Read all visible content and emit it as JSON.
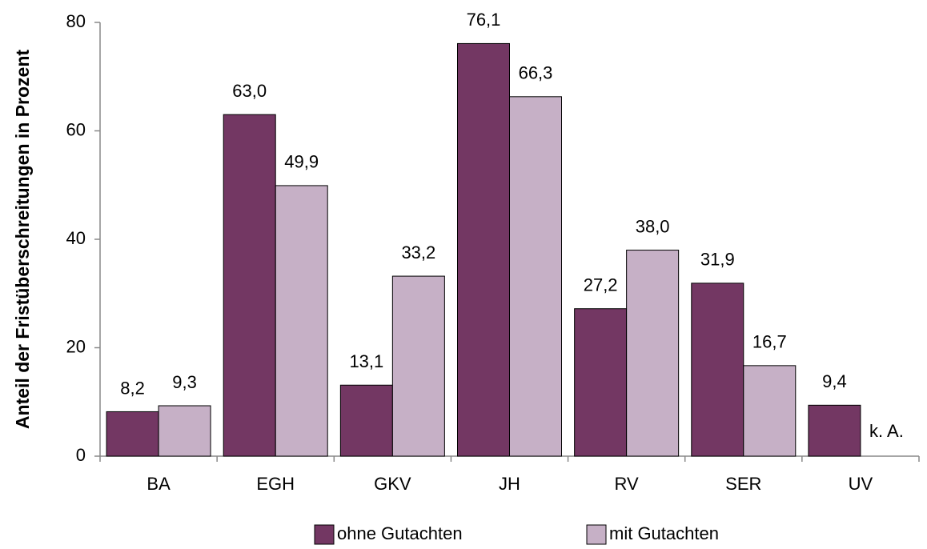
{
  "chart_data": {
    "type": "bar",
    "y_label": "Anteil der Fristüberschreitungen in Prozent",
    "categories": [
      "BA",
      "EGH",
      "GKV",
      "JH",
      "RV",
      "SER",
      "UV"
    ],
    "series": [
      {
        "name": "ohne Gutachten",
        "color": "#733763",
        "values": [
          8.2,
          63.0,
          13.1,
          76.1,
          27.2,
          31.9,
          9.4
        ],
        "value_labels": [
          "8,2",
          "63,0",
          "13,1",
          "76,1",
          "27,2",
          "31,9",
          "9,4"
        ]
      },
      {
        "name": "mit Gutachten",
        "color": "#c6b0c6",
        "values": [
          9.3,
          49.9,
          33.2,
          66.3,
          38.0,
          16.7,
          null
        ],
        "value_labels": [
          "9,3",
          "49,9",
          "33,2",
          "66,3",
          "38,0",
          "16,7",
          "k. A."
        ]
      }
    ],
    "ylim": [
      0,
      80
    ],
    "yticks": [
      0,
      20,
      40,
      60,
      80
    ],
    "legend": "bottom"
  }
}
